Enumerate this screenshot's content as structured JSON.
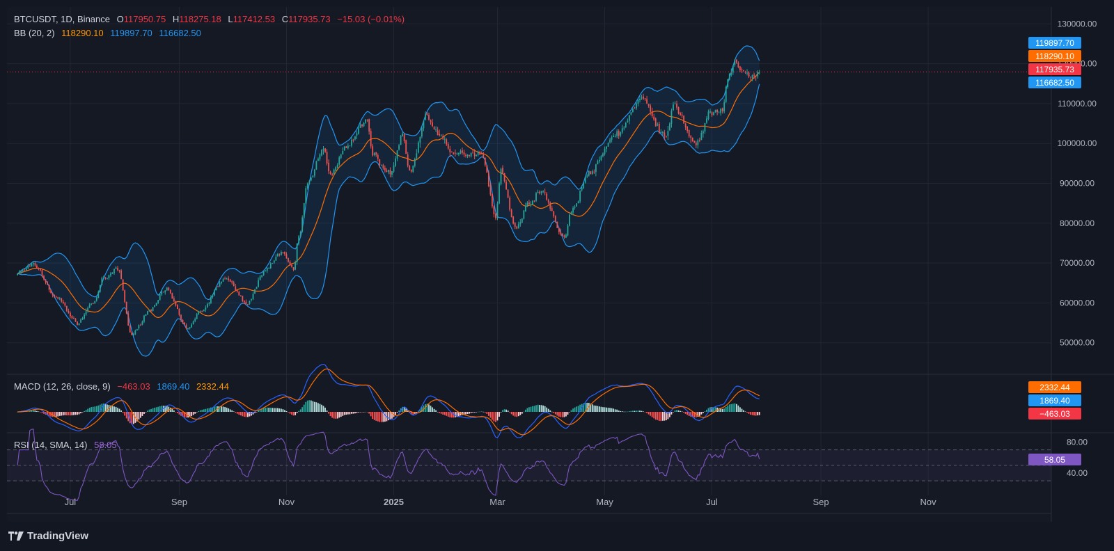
{
  "header": {
    "symbol": "BTCUSDT, 1D, Binance",
    "open_label": "O",
    "open": "117950.75",
    "high_label": "H",
    "high": "118275.18",
    "low_label": "L",
    "low": "117412.53",
    "close_label": "C",
    "close": "117935.73",
    "change": "−15.03 (−0.01%)"
  },
  "bb_legend": {
    "name": "BB (20, 2)",
    "basis": "118290.10",
    "upper": "119897.70",
    "lower": "116682.50"
  },
  "macd_legend": {
    "name": "MACD (12, 26, close, 9)",
    "hist": "−463.03",
    "macd": "1869.40",
    "signal": "2332.44"
  },
  "rsi_legend": {
    "name": "RSI (14, SMA, 14)",
    "value": "58.05"
  },
  "footer": {
    "brand": "TradingView"
  },
  "colors": {
    "up": "#26a69a",
    "down": "#ef5350",
    "bb_basis": "#ff6d00",
    "bb_band": "#2196f3",
    "macd_line": "#2962ff",
    "signal_line": "#ff6d00",
    "rsi": "#7e57c2",
    "bg": "#151924"
  },
  "chart_data": [
    {
      "type": "candlestick",
      "title": "BTCUSDT, 1D, Binance",
      "x_ticks": [
        "Jul",
        "Sep",
        "Nov",
        "2025",
        "Mar",
        "May",
        "Jul",
        "Sep",
        "Nov"
      ],
      "y_ticks": [
        50000,
        60000,
        70000,
        80000,
        90000,
        100000,
        110000,
        120000,
        130000
      ],
      "ylim": [
        41000,
        133000
      ],
      "price_anchors": [
        [
          "2024-06-01",
          67500
        ],
        [
          "2024-06-10",
          69500
        ],
        [
          "2024-06-24",
          61000
        ],
        [
          "2024-07-05",
          55000
        ],
        [
          "2024-07-14",
          60000
        ],
        [
          "2024-07-20",
          66000
        ],
        [
          "2024-07-28",
          68500
        ],
        [
          "2024-08-05",
          52000
        ],
        [
          "2024-08-15",
          58000
        ],
        [
          "2024-08-24",
          63500
        ],
        [
          "2024-09-06",
          53500
        ],
        [
          "2024-09-13",
          58000
        ],
        [
          "2024-09-27",
          66000
        ],
        [
          "2024-10-10",
          60000
        ],
        [
          "2024-10-20",
          68500
        ],
        [
          "2024-10-29",
          72500
        ],
        [
          "2024-11-05",
          68500
        ],
        [
          "2024-11-08",
          76500
        ],
        [
          "2024-11-13",
          90000
        ],
        [
          "2024-11-22",
          99000
        ],
        [
          "2024-11-26",
          92000
        ],
        [
          "2024-12-05",
          99000
        ],
        [
          "2024-12-17",
          106000
        ],
        [
          "2024-12-20",
          97000
        ],
        [
          "2024-12-30",
          92500
        ],
        [
          "2025-01-06",
          102000
        ],
        [
          "2025-01-10",
          93000
        ],
        [
          "2025-01-20",
          107000
        ],
        [
          "2025-01-27",
          102000
        ],
        [
          "2025-02-03",
          97500
        ],
        [
          "2025-02-20",
          97500
        ],
        [
          "2025-02-28",
          82000
        ],
        [
          "2025-03-03",
          93000
        ],
        [
          "2025-03-11",
          79000
        ],
        [
          "2025-03-20",
          85500
        ],
        [
          "2025-03-26",
          88000
        ],
        [
          "2025-04-08",
          76500
        ],
        [
          "2025-04-13",
          84000
        ],
        [
          "2025-04-22",
          92500
        ],
        [
          "2025-05-08",
          102500
        ],
        [
          "2025-05-22",
          111000
        ],
        [
          "2025-06-05",
          101500
        ],
        [
          "2025-06-09",
          109500
        ],
        [
          "2025-06-22",
          100000
        ],
        [
          "2025-06-30",
          107500
        ],
        [
          "2025-07-07",
          108000
        ],
        [
          "2025-07-10",
          116000
        ],
        [
          "2025-07-14",
          121000
        ],
        [
          "2025-07-18",
          118000
        ],
        [
          "2025-07-25",
          116500
        ],
        [
          "2025-07-28",
          118000
        ]
      ],
      "last_close": 117935.73,
      "bollinger": {
        "length": 20,
        "mult": 2,
        "basis": 118290.1,
        "upper": 119897.7,
        "lower": 116682.5
      },
      "price_labels": [
        "119897.70",
        "118290.10",
        "117935.73",
        "116682.50"
      ]
    },
    {
      "type": "line",
      "title": "MACD (12, 26, close, 9)",
      "series_colors": {
        "macd": "#2962ff",
        "signal": "#ff6d00",
        "histogram": "mixed"
      },
      "last": {
        "histogram": -463.03,
        "macd": 1869.4,
        "signal": 2332.44
      },
      "price_labels": [
        "2332.44",
        "1869.40",
        "−463.03"
      ]
    },
    {
      "type": "line",
      "title": "RSI (14, SMA, 14)",
      "y_ticks": [
        40,
        80
      ],
      "levels": [
        70,
        50,
        30
      ],
      "ylim": [
        20,
        85
      ],
      "last": 58.05,
      "price_labels": [
        "80.00",
        "40.00",
        "58.05"
      ]
    }
  ]
}
